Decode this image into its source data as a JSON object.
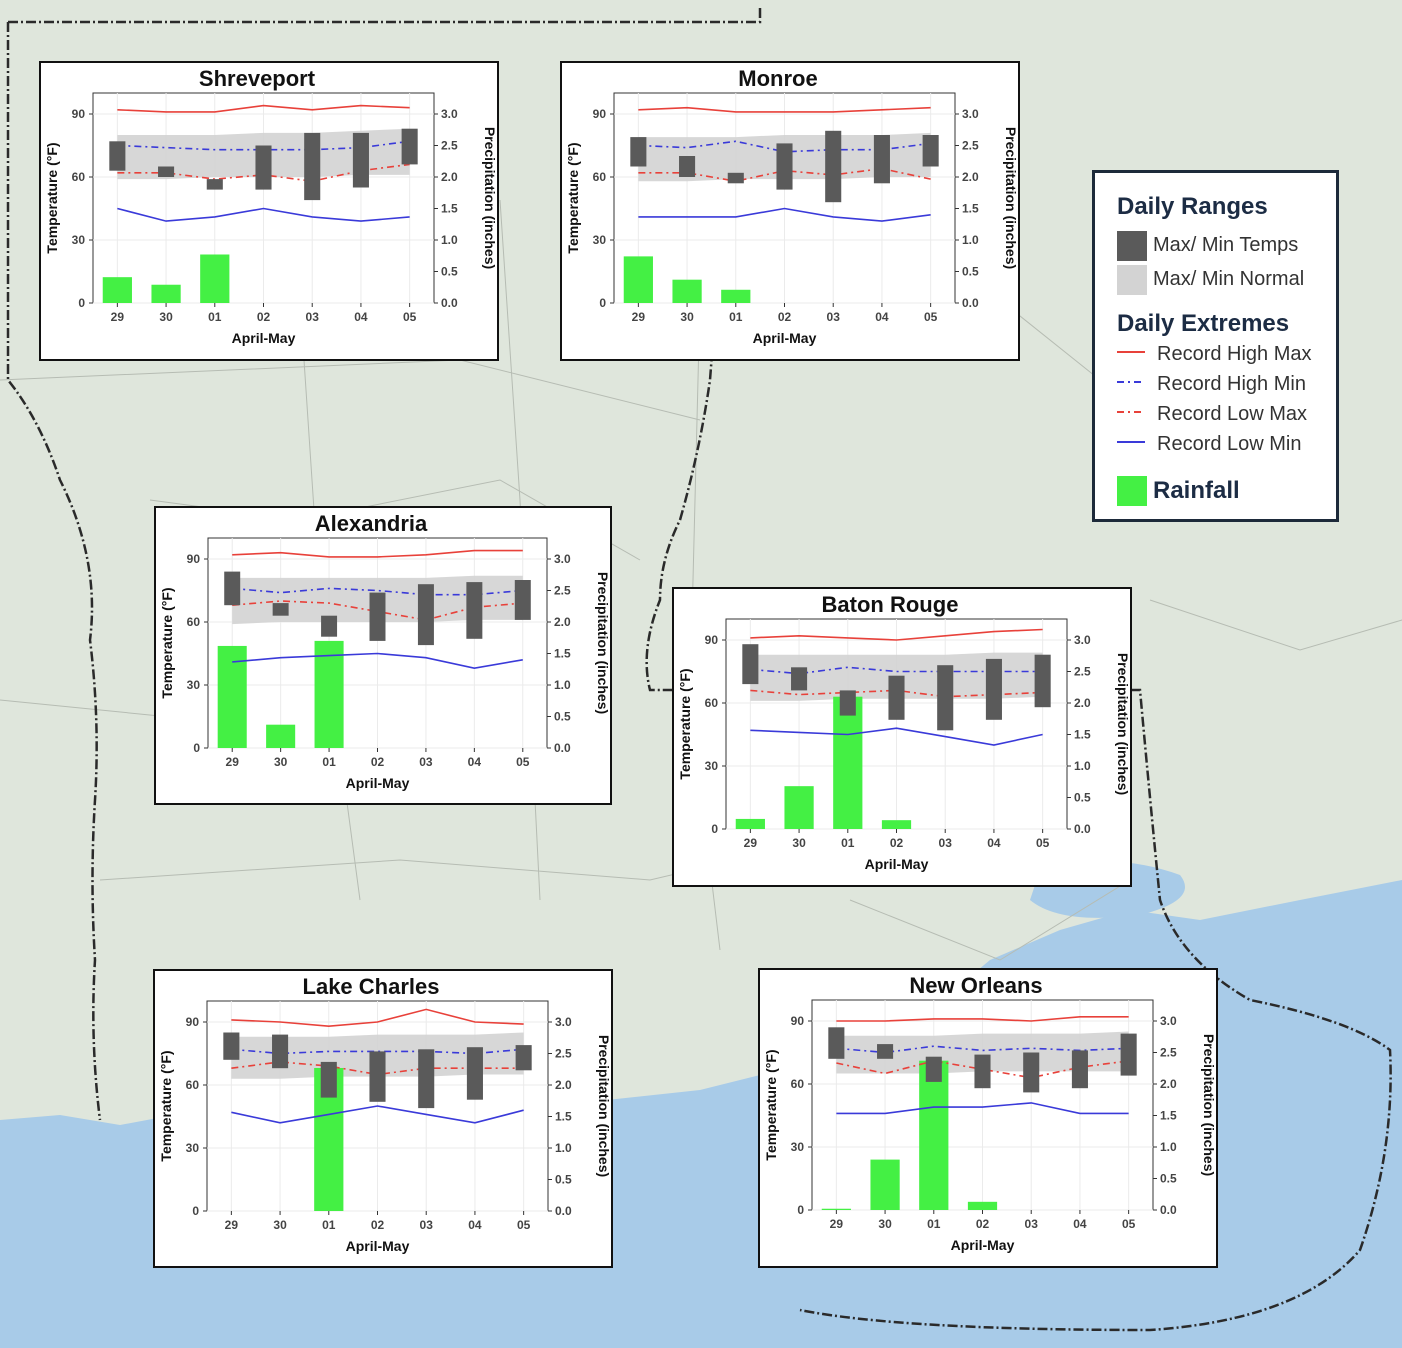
{
  "legend": {
    "ranges_title": "Daily Ranges",
    "temps_label": "Max/ Min Temps",
    "normal_label": "Max/ Min Normal",
    "extremes_title": "Daily Extremes",
    "rec_high_max": "Record High Max",
    "rec_high_min": "Record High Min",
    "rec_low_max": "Record Low Max",
    "rec_low_min": "Record Low Min",
    "rainfall": "Rainfall"
  },
  "colors": {
    "temp_bar": "#5a5a5a",
    "normal_band": "#d3d3d3",
    "record_high_max": "#e8413a",
    "record_high_min": "#3a3ad9",
    "record_low_max": "#e8413a",
    "record_low_min": "#3a3ad9",
    "rainfall": "#44f044",
    "water": "#a8cbe8",
    "land": "#dfe6dc"
  },
  "chart_data": [
    {
      "type": "bar+line",
      "title": "Shreveport",
      "xlabel": "April-May",
      "ylabel": "Temperature (°F)",
      "y2label": "Precipitation (inches)",
      "ylim": [
        0,
        100
      ],
      "yticks": [
        0,
        30,
        60,
        90
      ],
      "y2lim": [
        0,
        3.3333
      ],
      "y2ticks": [
        "0.0",
        "0.5",
        "1.0",
        "1.5",
        "2.0",
        "2.5",
        "3.0"
      ],
      "categories": [
        "29",
        "30",
        "01",
        "02",
        "03",
        "04",
        "05"
      ],
      "temp_max": [
        77,
        65,
        59,
        75,
        81,
        81,
        83
      ],
      "temp_min": [
        63,
        60,
        54,
        54,
        49,
        55,
        66
      ],
      "normal_max": [
        80,
        80,
        80,
        81,
        81,
        82,
        83
      ],
      "normal_min": [
        59,
        59,
        60,
        60,
        60,
        61,
        61
      ],
      "record_high_max": [
        92,
        91,
        91,
        94,
        92,
        94,
        93
      ],
      "record_high_min": [
        75,
        74,
        73,
        73,
        73,
        74,
        77
      ],
      "record_low_max": [
        62,
        62,
        59,
        61,
        58,
        63,
        66
      ],
      "record_low_min": [
        45,
        39,
        41,
        45,
        41,
        39,
        41
      ],
      "rainfall": [
        0.41,
        0.29,
        0.77,
        0,
        0,
        0,
        0
      ]
    },
    {
      "type": "bar+line",
      "title": "Monroe",
      "xlabel": "April-May",
      "ylabel": "Temperature (°F)",
      "y2label": "Precipitation (inches)",
      "ylim": [
        0,
        100
      ],
      "yticks": [
        0,
        30,
        60,
        90
      ],
      "y2lim": [
        0,
        3.3333
      ],
      "y2ticks": [
        "0.0",
        "0.5",
        "1.0",
        "1.5",
        "2.0",
        "2.5",
        "3.0"
      ],
      "categories": [
        "29",
        "30",
        "01",
        "02",
        "03",
        "04",
        "05"
      ],
      "temp_max": [
        79,
        70,
        62,
        76,
        82,
        80,
        80
      ],
      "temp_min": [
        65,
        60,
        57,
        54,
        48,
        57,
        65
      ],
      "normal_max": [
        79,
        79,
        79,
        80,
        80,
        80,
        81
      ],
      "normal_min": [
        58,
        58,
        59,
        59,
        59,
        60,
        60
      ],
      "record_high_max": [
        92,
        93,
        91,
        91,
        91,
        92,
        93
      ],
      "record_high_min": [
        75,
        74,
        77,
        72,
        73,
        73,
        76
      ],
      "record_low_max": [
        62,
        62,
        58,
        63,
        61,
        64,
        59
      ],
      "record_low_min": [
        41,
        41,
        41,
        45,
        41,
        39,
        42
      ],
      "rainfall": [
        0.74,
        0.37,
        0.21,
        0,
        0,
        0,
        0
      ]
    },
    {
      "type": "bar+line",
      "title": "Alexandria",
      "xlabel": "April-May",
      "ylabel": "Temperature (°F)",
      "y2label": "Precipitation (inches)",
      "ylim": [
        0,
        100
      ],
      "yticks": [
        0,
        30,
        60,
        90
      ],
      "y2lim": [
        0,
        3.3333
      ],
      "y2ticks": [
        "0.0",
        "0.5",
        "1.0",
        "1.5",
        "2.0",
        "2.5",
        "3.0"
      ],
      "categories": [
        "29",
        "30",
        "01",
        "02",
        "03",
        "04",
        "05"
      ],
      "temp_max": [
        84,
        69,
        63,
        74,
        78,
        79,
        80
      ],
      "temp_min": [
        68,
        63,
        53,
        51,
        49,
        52,
        61
      ],
      "normal_max": [
        81,
        81,
        81,
        81,
        81,
        82,
        82
      ],
      "normal_min": [
        59,
        60,
        60,
        60,
        60,
        61,
        61
      ],
      "record_high_max": [
        92,
        93,
        91,
        91,
        92,
        94,
        94
      ],
      "record_high_min": [
        76,
        74,
        76,
        75,
        73,
        73,
        75
      ],
      "record_low_max": [
        68,
        70,
        69,
        65,
        61,
        67,
        69
      ],
      "record_low_min": [
        41,
        43,
        44,
        45,
        43,
        38,
        42
      ],
      "rainfall": [
        1.62,
        0.37,
        1.7,
        0,
        0,
        0,
        0
      ]
    },
    {
      "type": "bar+line",
      "title": "Baton Rouge",
      "xlabel": "April-May",
      "ylabel": "Temperature (°F)",
      "y2label": "Precipitation (inches)",
      "ylim": [
        0,
        100
      ],
      "yticks": [
        0,
        30,
        60,
        90
      ],
      "y2lim": [
        0,
        3.3333
      ],
      "y2ticks": [
        "0.0",
        "0.5",
        "1.0",
        "1.5",
        "2.0",
        "2.5",
        "3.0"
      ],
      "categories": [
        "29",
        "30",
        "01",
        "02",
        "03",
        "04",
        "05"
      ],
      "temp_max": [
        88,
        77,
        66,
        73,
        78,
        81,
        83
      ],
      "temp_min": [
        69,
        66,
        54,
        52,
        47,
        52,
        58
      ],
      "normal_max": [
        83,
        83,
        83,
        83,
        83,
        84,
        84
      ],
      "normal_min": [
        61,
        61,
        62,
        62,
        62,
        62,
        63
      ],
      "record_high_max": [
        91,
        92,
        91,
        90,
        92,
        94,
        95
      ],
      "record_high_min": [
        76,
        74,
        77,
        75,
        75,
        75,
        75
      ],
      "record_low_max": [
        66,
        64,
        65,
        66,
        63,
        64,
        65
      ],
      "record_low_min": [
        47,
        46,
        45,
        48,
        44,
        40,
        45
      ],
      "rainfall": [
        0.16,
        0.68,
        2.1,
        0.14,
        0,
        0,
        0
      ]
    },
    {
      "type": "bar+line",
      "title": "Lake Charles",
      "xlabel": "April-May",
      "ylabel": "Temperature (°F)",
      "y2label": "Precipitation (inches)",
      "ylim": [
        0,
        100
      ],
      "yticks": [
        0,
        30,
        60,
        90
      ],
      "y2lim": [
        0,
        3.3333
      ],
      "y2ticks": [
        "0.0",
        "0.5",
        "1.0",
        "1.5",
        "2.0",
        "2.5",
        "3.0"
      ],
      "categories": [
        "29",
        "30",
        "01",
        "02",
        "03",
        "04",
        "05"
      ],
      "temp_max": [
        85,
        84,
        71,
        76,
        77,
        78,
        79
      ],
      "temp_min": [
        72,
        68,
        54,
        52,
        49,
        53,
        67
      ],
      "normal_max": [
        83,
        83,
        83,
        84,
        84,
        84,
        85
      ],
      "normal_min": [
        63,
        63,
        64,
        64,
        64,
        65,
        65
      ],
      "record_high_max": [
        91,
        90,
        88,
        90,
        96,
        90,
        89
      ],
      "record_high_min": [
        77,
        75,
        76,
        76,
        76,
        75,
        77
      ],
      "record_low_max": [
        68,
        71,
        69,
        65,
        68,
        68,
        68
      ],
      "record_low_min": [
        47,
        42,
        46,
        50,
        46,
        42,
        48
      ],
      "rainfall": [
        0,
        0,
        2.27,
        0,
        0,
        0,
        0
      ]
    },
    {
      "type": "bar+line",
      "title": "New Orleans",
      "xlabel": "April-May",
      "ylabel": "Temperature (°F)",
      "y2label": "Precipitation (inches)",
      "ylim": [
        0,
        100
      ],
      "yticks": [
        0,
        30,
        60,
        90
      ],
      "y2lim": [
        0,
        3.3333
      ],
      "y2ticks": [
        "0.0",
        "0.5",
        "1.0",
        "1.5",
        "2.0",
        "2.5",
        "3.0"
      ],
      "categories": [
        "29",
        "30",
        "01",
        "02",
        "03",
        "04",
        "05"
      ],
      "temp_max": [
        87,
        79,
        73,
        74,
        75,
        76,
        84
      ],
      "temp_min": [
        72,
        72,
        61,
        58,
        56,
        58,
        64
      ],
      "normal_max": [
        83,
        83,
        83,
        84,
        84,
        84,
        85
      ],
      "normal_min": [
        65,
        65,
        65,
        66,
        66,
        66,
        66
      ],
      "record_high_max": [
        90,
        90,
        91,
        91,
        90,
        92,
        92
      ],
      "record_high_min": [
        77,
        75,
        78,
        76,
        77,
        76,
        77
      ],
      "record_low_max": [
        70,
        65,
        71,
        67,
        63,
        68,
        71
      ],
      "record_low_min": [
        46,
        46,
        49,
        49,
        51,
        46,
        46
      ],
      "rainfall": [
        0.02,
        0.8,
        2.37,
        0.13,
        0,
        0,
        0
      ]
    }
  ]
}
